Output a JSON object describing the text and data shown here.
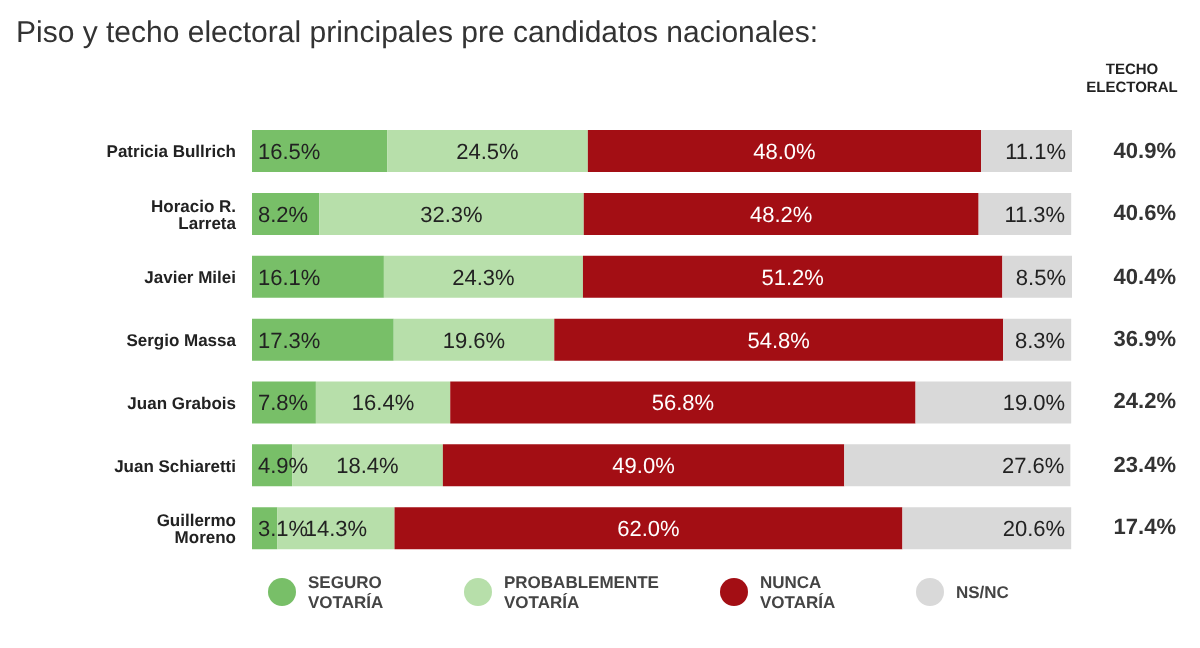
{
  "chart_data": {
    "type": "bar",
    "orientation": "horizontal",
    "stacked": true,
    "title": "Piso y techo electoral principales pre candidatos nacionales:",
    "categories": [
      "Patricia Bullrich",
      "Horacio R. Larreta",
      "Javier Milei",
      "Sergio Massa",
      "Juan Grabois",
      "Juan Schiaretti",
      "Guillermo Moreno"
    ],
    "series": [
      {
        "name": "SEGURO VOTARÍA",
        "color": "#78bf68",
        "values": [
          16.5,
          8.2,
          16.1,
          17.3,
          7.8,
          4.9,
          3.1
        ],
        "value_labels": [
          "16.5%",
          "8.2%",
          "16.1%",
          "17.3%",
          "7.8%",
          "4.9%",
          "3.1%"
        ]
      },
      {
        "name": "PROBABLEMENTE VOTARÍA",
        "color": "#b7dfaa",
        "values": [
          24.5,
          32.3,
          24.3,
          19.6,
          16.4,
          18.4,
          14.3
        ],
        "value_labels": [
          "24.5%",
          "32.3%",
          "24.3%",
          "19.6%",
          "16.4%",
          "18.4%",
          "14.3%"
        ]
      },
      {
        "name": "NUNCA VOTARÍA",
        "color": "#a30e14",
        "values": [
          48.0,
          48.2,
          51.2,
          54.8,
          56.8,
          49.0,
          62.0
        ],
        "value_labels": [
          "48.0%",
          "48.2%",
          "51.2%",
          "54.8%",
          "56.8%",
          "49.0%",
          "62.0%"
        ]
      },
      {
        "name": "NS/NC",
        "color": "#d9d9d9",
        "values": [
          11.1,
          11.3,
          8.5,
          8.3,
          19.0,
          27.6,
          20.6
        ],
        "value_labels": [
          "11.1%",
          "11.3%",
          "8.5%",
          "8.3%",
          "19.0%",
          "27.6%",
          "20.6%"
        ]
      }
    ],
    "annotations": [
      "TECHO ELECTORAL",
      "40.9%",
      "40.6%",
      "40.4%",
      "36.9%",
      "24.2%",
      "23.4%",
      "17.4%"
    ],
    "legend": "bottom"
  }
}
